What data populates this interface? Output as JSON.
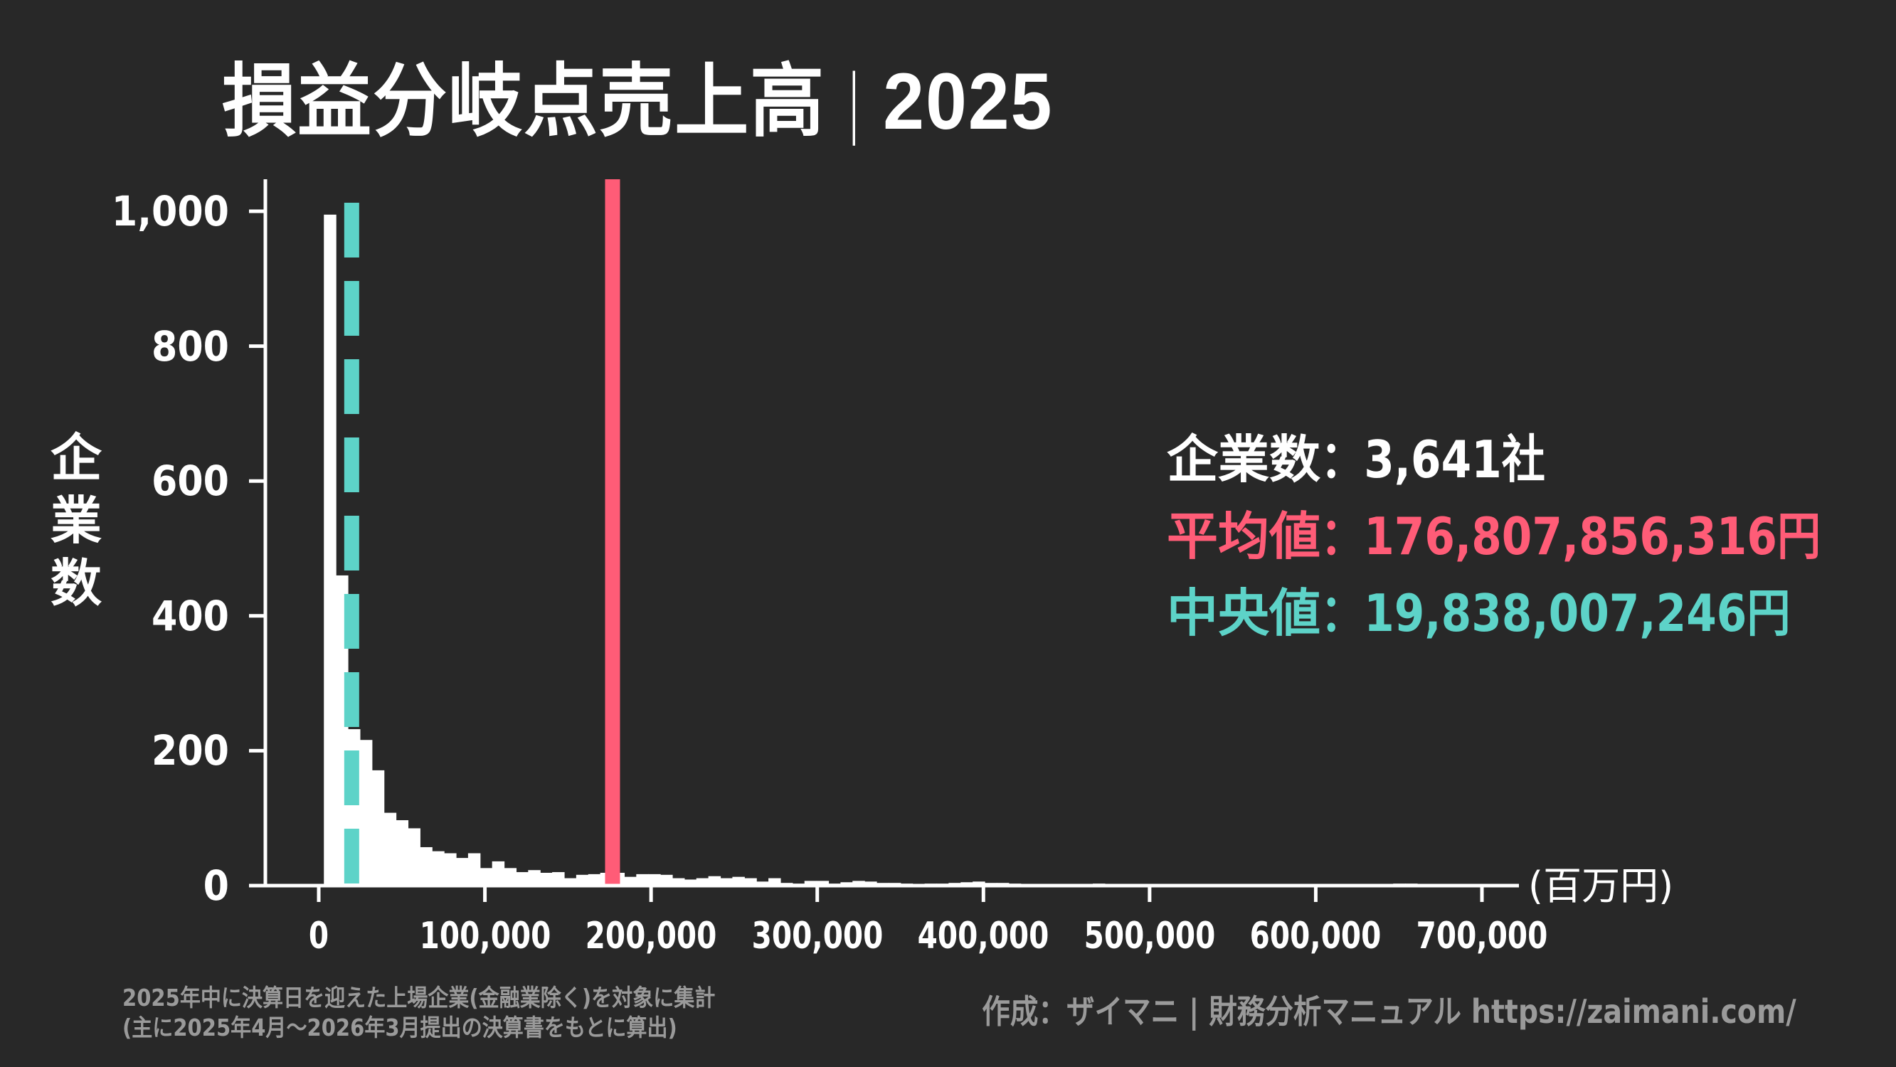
{
  "title": {
    "main": "損益分岐点売上高",
    "separator": "|",
    "year": "2025"
  },
  "stats": {
    "count_label": "企業数",
    "count_value": "：3,641社",
    "mean_label": "平均値",
    "mean_value": "：176,807,856,316円",
    "median_label": "中央値",
    "median_value": "：19,838,007,246円"
  },
  "footer": {
    "note_line1": "2025年中に決算日を迎えた上場企業(金融業除く)を対象に集計",
    "note_line2": "(主に2025年4月〜2026年3月提出の決算書をもとに算出)",
    "credit": "作成：ザイマニ | 財務分析マニュアル https://zaimani.com/"
  },
  "colors": {
    "background": "#282828",
    "bars": "#ffffff",
    "mean": "#FF5C77",
    "median": "#5DD3C8",
    "footer_text": "#9a9a9a"
  },
  "chart_data": {
    "type": "bar",
    "subtype": "histogram",
    "title": "損益分岐点売上高｜2025",
    "xlabel": "(百万円)",
    "ylabel": "企業数",
    "xlim": [
      -20000,
      710000
    ],
    "ylim": [
      0,
      1040
    ],
    "x_ticks": [
      0,
      100000,
      200000,
      300000,
      400000,
      500000,
      600000,
      700000
    ],
    "x_tick_labels": [
      "0",
      "100,000",
      "200,000",
      "300,000",
      "400,000",
      "500,000",
      "600,000",
      "700,000"
    ],
    "y_ticks": [
      0,
      200,
      400,
      600,
      800,
      1000
    ],
    "y_tick_labels": [
      "0",
      "200",
      "400",
      "600",
      "800",
      "1,000"
    ],
    "grid": false,
    "bin_start": 3100,
    "bin_width": 7230,
    "counts": [
      995,
      460,
      232,
      216,
      171,
      108,
      97,
      85,
      57,
      51,
      48,
      41,
      48,
      26,
      36,
      26,
      20,
      23,
      19,
      20,
      11,
      16,
      17,
      19,
      19,
      13,
      17,
      17,
      16,
      11,
      9,
      11,
      14,
      11,
      13,
      11,
      6,
      11,
      4,
      3,
      7,
      7,
      3,
      5,
      7,
      6,
      4,
      4,
      3,
      2,
      3,
      3,
      4,
      5,
      6,
      4,
      4,
      3,
      2,
      2,
      2,
      1,
      2,
      1,
      3,
      1,
      1,
      2,
      1,
      2,
      1,
      1,
      2,
      1,
      1,
      1,
      1,
      2,
      1,
      1,
      2,
      1,
      1,
      1,
      1,
      2,
      1,
      1,
      2,
      3,
      3,
      1,
      1,
      1,
      1,
      1,
      1,
      1,
      1
    ],
    "mean_line": {
      "label": "平均値",
      "value": 176807.856316,
      "style": "solid",
      "color": "#FF5C77"
    },
    "median_line": {
      "label": "中央値",
      "value": 19838.007246,
      "style": "dashed",
      "color": "#5DD3C8"
    },
    "annotations": [
      "企業数：3,641社",
      "平均値：176,807,856,316円",
      "中央値：19,838,007,246円"
    ]
  }
}
